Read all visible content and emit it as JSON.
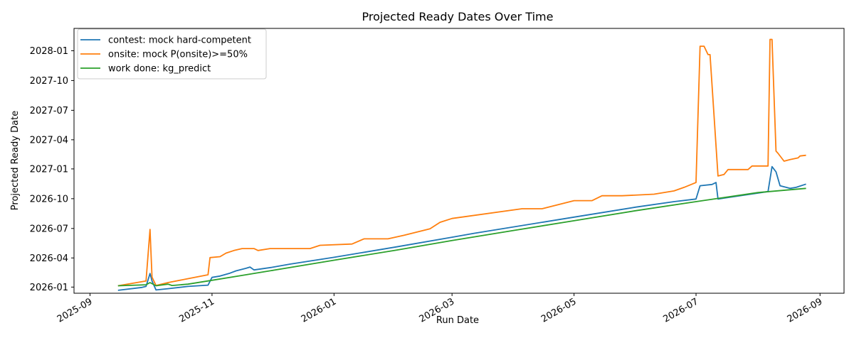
{
  "chart_data": {
    "type": "line",
    "title": "Projected Ready Dates Over Time",
    "xlabel": "Run Date",
    "ylabel": "Projected Ready Date",
    "xlim": [
      "2025-08-24",
      "2026-09-13"
    ],
    "ylim": [
      "2025-12-13",
      "2028-03-10"
    ],
    "x_ticks": [
      "2025-09",
      "2025-11",
      "2026-01",
      "2026-03",
      "2026-05",
      "2026-07",
      "2026-09"
    ],
    "y_ticks": [
      "2026-01",
      "2026-04",
      "2026-07",
      "2026-10",
      "2027-01",
      "2027-04",
      "2027-07",
      "2027-10",
      "2028-01"
    ],
    "grid": false,
    "legend": "top-left",
    "series": [
      {
        "name": "contest: mock hard-competent",
        "color": "#1f77b4",
        "points": [
          [
            "2025-09-15",
            "2025-12-22"
          ],
          [
            "2025-09-27",
            "2025-12-31"
          ],
          [
            "2025-09-29",
            "2026-01-03"
          ],
          [
            "2025-10-01",
            "2026-02-12"
          ],
          [
            "2025-10-02",
            "2026-01-20"
          ],
          [
            "2025-10-04",
            "2025-12-23"
          ],
          [
            "2025-10-10",
            "2025-12-27"
          ],
          [
            "2025-10-20",
            "2026-01-03"
          ],
          [
            "2025-10-30",
            "2026-01-07"
          ],
          [
            "2025-11-01",
            "2026-01-31"
          ],
          [
            "2025-11-05",
            "2026-02-04"
          ],
          [
            "2025-11-10",
            "2026-02-13"
          ],
          [
            "2025-11-13",
            "2026-02-20"
          ],
          [
            "2025-11-18",
            "2026-02-28"
          ],
          [
            "2025-11-20",
            "2026-03-04"
          ],
          [
            "2025-11-22",
            "2026-02-23"
          ],
          [
            "2025-12-01",
            "2026-03-03"
          ],
          [
            "2025-12-10",
            "2026-03-13"
          ],
          [
            "2026-01-01",
            "2026-04-03"
          ],
          [
            "2026-02-01",
            "2026-05-05"
          ],
          [
            "2026-03-01",
            "2026-06-04"
          ],
          [
            "2026-03-12",
            "2026-06-16"
          ],
          [
            "2026-05-01",
            "2026-08-05"
          ],
          [
            "2026-06-01",
            "2026-09-05"
          ],
          [
            "2026-06-20",
            "2026-09-22"
          ],
          [
            "2026-07-01",
            "2026-09-30"
          ],
          [
            "2026-07-03",
            "2026-11-10"
          ],
          [
            "2026-07-09",
            "2026-11-14"
          ],
          [
            "2026-07-11",
            "2026-11-20"
          ],
          [
            "2026-07-12",
            "2026-09-30"
          ],
          [
            "2026-08-06",
            "2026-10-23"
          ],
          [
            "2026-08-08",
            "2027-01-08"
          ],
          [
            "2026-08-10",
            "2026-12-23"
          ],
          [
            "2026-08-12",
            "2026-11-10"
          ],
          [
            "2026-08-17",
            "2026-11-02"
          ],
          [
            "2026-08-20",
            "2026-11-05"
          ],
          [
            "2026-08-25",
            "2026-11-15"
          ]
        ]
      },
      {
        "name": "onsite: mock P(onsite)>=50%",
        "color": "#ff7f0e",
        "points": [
          [
            "2025-09-15",
            "2026-01-05"
          ],
          [
            "2025-09-29",
            "2026-01-20"
          ],
          [
            "2025-10-01",
            "2026-06-28"
          ],
          [
            "2025-10-02",
            "2026-02-01"
          ],
          [
            "2025-10-04",
            "2026-01-06"
          ],
          [
            "2025-10-10",
            "2026-01-15"
          ],
          [
            "2025-10-20",
            "2026-01-27"
          ],
          [
            "2025-10-30",
            "2026-02-08"
          ],
          [
            "2025-10-31",
            "2026-04-02"
          ],
          [
            "2025-11-05",
            "2026-04-05"
          ],
          [
            "2025-11-08",
            "2026-04-16"
          ],
          [
            "2025-11-12",
            "2026-04-24"
          ],
          [
            "2025-11-16",
            "2026-04-30"
          ],
          [
            "2025-11-22",
            "2026-04-30"
          ],
          [
            "2025-11-24",
            "2026-04-24"
          ],
          [
            "2025-11-30",
            "2026-04-30"
          ],
          [
            "2025-12-20",
            "2026-04-30"
          ],
          [
            "2025-12-25",
            "2026-05-10"
          ],
          [
            "2026-01-10",
            "2026-05-14"
          ],
          [
            "2026-01-16",
            "2026-05-30"
          ],
          [
            "2026-01-28",
            "2026-05-30"
          ],
          [
            "2026-02-05",
            "2026-06-10"
          ],
          [
            "2026-02-18",
            "2026-06-30"
          ],
          [
            "2026-02-23",
            "2026-07-20"
          ],
          [
            "2026-03-01",
            "2026-08-01"
          ],
          [
            "2026-04-05",
            "2026-08-31"
          ],
          [
            "2026-04-15",
            "2026-08-31"
          ],
          [
            "2026-05-01",
            "2026-09-25"
          ],
          [
            "2026-05-10",
            "2026-09-25"
          ],
          [
            "2026-05-15",
            "2026-10-10"
          ],
          [
            "2026-05-25",
            "2026-10-10"
          ],
          [
            "2026-06-10",
            "2026-10-15"
          ],
          [
            "2026-06-20",
            "2026-10-25"
          ],
          [
            "2026-06-25",
            "2026-11-05"
          ],
          [
            "2026-07-01",
            "2026-11-20"
          ],
          [
            "2026-07-03",
            "2028-01-15"
          ],
          [
            "2026-07-05",
            "2028-01-15"
          ],
          [
            "2026-07-07",
            "2027-12-20"
          ],
          [
            "2026-07-08",
            "2027-12-20"
          ],
          [
            "2026-07-12",
            "2026-12-10"
          ],
          [
            "2026-07-15",
            "2026-12-15"
          ],
          [
            "2026-07-17",
            "2026-12-30"
          ],
          [
            "2026-07-27",
            "2026-12-30"
          ],
          [
            "2026-07-29",
            "2027-01-10"
          ],
          [
            "2026-08-06",
            "2027-01-10"
          ],
          [
            "2026-08-07",
            "2028-02-05"
          ],
          [
            "2026-08-08",
            "2028-02-05"
          ],
          [
            "2026-08-10",
            "2027-02-25"
          ],
          [
            "2026-08-11",
            "2027-02-18"
          ],
          [
            "2026-08-14",
            "2027-01-25"
          ],
          [
            "2026-08-17",
            "2027-01-30"
          ],
          [
            "2026-08-21",
            "2027-02-04"
          ],
          [
            "2026-08-22",
            "2027-02-10"
          ],
          [
            "2026-08-25",
            "2027-02-12"
          ]
        ]
      },
      {
        "name": "work done: kg_predict",
        "color": "#2ca02c",
        "points": [
          [
            "2025-09-15",
            "2026-01-05"
          ],
          [
            "2025-09-29",
            "2026-01-08"
          ],
          [
            "2025-10-01",
            "2026-01-15"
          ],
          [
            "2025-10-04",
            "2026-01-05"
          ],
          [
            "2025-10-10",
            "2026-01-10"
          ],
          [
            "2025-10-12",
            "2026-01-06"
          ],
          [
            "2025-10-20",
            "2026-01-10"
          ],
          [
            "2025-10-30",
            "2026-01-20"
          ],
          [
            "2025-11-15",
            "2026-02-05"
          ],
          [
            "2026-01-01",
            "2026-03-25"
          ],
          [
            "2026-02-01",
            "2026-04-25"
          ],
          [
            "2026-03-01",
            "2026-05-25"
          ],
          [
            "2026-04-01",
            "2026-06-25"
          ],
          [
            "2026-05-01",
            "2026-07-25"
          ],
          [
            "2026-06-01",
            "2026-08-25"
          ],
          [
            "2026-07-01",
            "2026-09-22"
          ],
          [
            "2026-08-01",
            "2026-10-20"
          ],
          [
            "2026-08-25",
            "2026-11-02"
          ]
        ]
      }
    ]
  }
}
